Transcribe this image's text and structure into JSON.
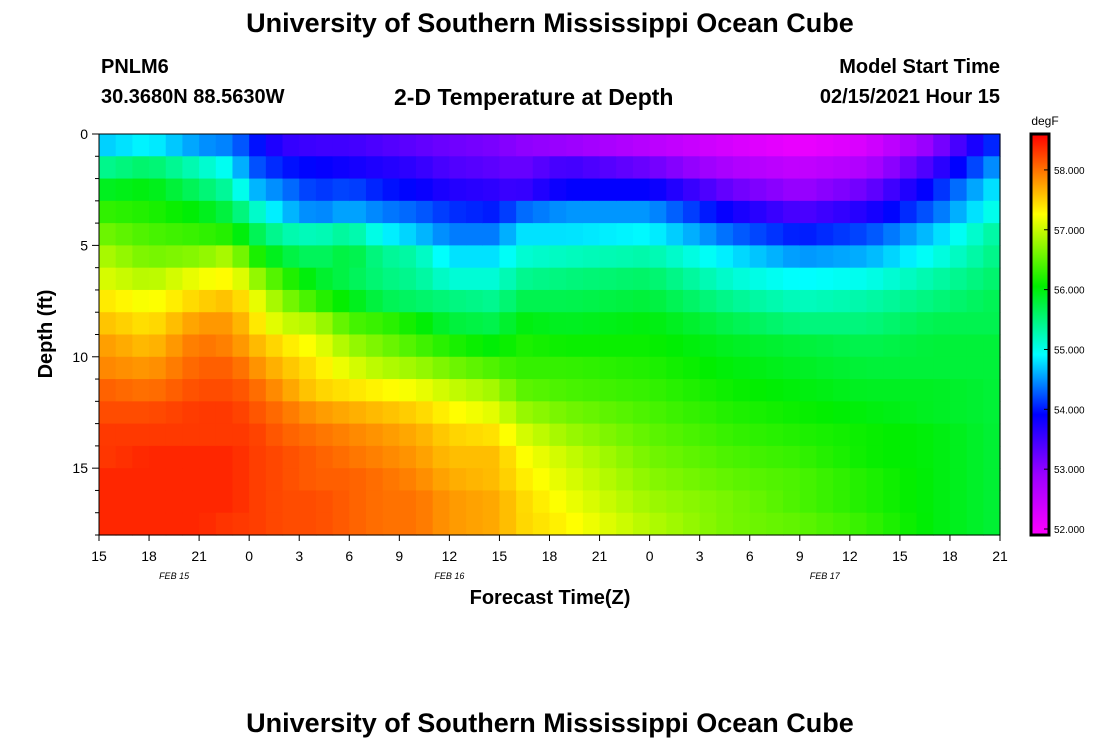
{
  "header": {
    "title": "University of Southern Mississippi Ocean Cube",
    "station_id": "PNLM6",
    "station_coords": "30.3680N 88.5630W",
    "plot_title": "2-D Temperature at Depth",
    "model_start_label": "Model Start Time",
    "model_start_value": "02/15/2021 Hour 15"
  },
  "footer": {
    "title": "University of Southern Mississippi Ocean Cube"
  },
  "chart_data": {
    "type": "heatmap",
    "title": "2-D Temperature at Depth",
    "xlabel": "Forecast Time(Z)",
    "ylabel": "Depth (ft)",
    "x_tick_labels": [
      "15",
      "18",
      "21",
      "0",
      "3",
      "6",
      "9",
      "12",
      "15",
      "18",
      "21",
      "0",
      "3",
      "6",
      "9",
      "12",
      "15",
      "18",
      "21"
    ],
    "date_labels": [
      {
        "label": "FEB 15",
        "tick_index": 1.5
      },
      {
        "label": "FEB 16",
        "tick_index": 7
      },
      {
        "label": "FEB 17",
        "tick_index": 14.5
      }
    ],
    "x_range_hours": [
      0,
      54
    ],
    "y_ticks": [
      0,
      5,
      10,
      15
    ],
    "y_range_ft": [
      0,
      18
    ],
    "colorbar": {
      "unit": "degF",
      "min": 51.9,
      "max": 58.6,
      "ticks": [
        "52.000",
        "53.000",
        "54.000",
        "55.000",
        "56.000",
        "57.000",
        "58.000"
      ]
    },
    "depth_levels_ft": [
      0.5,
      1.5,
      2.5,
      3.5,
      4.5,
      5.5,
      6.5,
      7.5,
      8.5,
      9.5,
      10.5,
      11.5,
      12.5,
      13.5,
      14.5,
      15.5,
      16.5,
      17.5
    ],
    "profiles": [
      {
        "hour": 0,
        "temps": [
          54.7,
          55.4,
          55.9,
          56.3,
          56.6,
          56.9,
          57.1,
          57.4,
          57.6,
          57.8,
          57.9,
          58.1,
          58.2,
          58.3,
          58.3,
          58.4,
          58.4,
          58.4
        ]
      },
      {
        "hour": 3,
        "temps": [
          54.9,
          55.6,
          56.0,
          56.2,
          56.4,
          56.6,
          56.9,
          57.2,
          57.4,
          57.6,
          57.8,
          58.0,
          58.2,
          58.3,
          58.4,
          58.4,
          58.4,
          58.4
        ]
      },
      {
        "hour": 6,
        "temps": [
          54.5,
          55.2,
          55.6,
          56.0,
          56.3,
          56.7,
          57.2,
          57.5,
          57.8,
          58.0,
          58.1,
          58.2,
          58.3,
          58.3,
          58.4,
          58.4,
          58.4,
          58.4
        ]
      },
      {
        "hour": 8,
        "temps": [
          54.4,
          54.9,
          55.3,
          55.7,
          56.2,
          56.9,
          57.3,
          57.6,
          57.8,
          57.9,
          58.1,
          58.2,
          58.3,
          58.3,
          58.4,
          58.4,
          58.4,
          58.3
        ]
      },
      {
        "hour": 9,
        "temps": [
          54.1,
          54.3,
          54.7,
          55.3,
          55.8,
          56.3,
          56.9,
          57.3,
          57.5,
          57.7,
          57.9,
          58.1,
          58.2,
          58.3,
          58.3,
          58.3,
          58.3,
          58.3
        ]
      },
      {
        "hour": 11,
        "temps": [
          53.6,
          54.0,
          54.4,
          54.7,
          55.3,
          55.8,
          56.3,
          56.7,
          57.0,
          57.4,
          57.6,
          57.8,
          58.0,
          58.1,
          58.2,
          58.2,
          58.2,
          58.2
        ]
      },
      {
        "hour": 13,
        "temps": [
          53.5,
          53.9,
          54.1,
          54.4,
          55.2,
          55.6,
          55.9,
          56.3,
          56.9,
          57.2,
          57.4,
          57.5,
          57.8,
          58.0,
          58.1,
          58.1,
          58.2,
          58.2
        ]
      },
      {
        "hour": 15,
        "temps": [
          53.5,
          53.8,
          54.2,
          54.6,
          55.4,
          55.8,
          55.7,
          56.0,
          56.4,
          56.8,
          57.1,
          57.4,
          57.7,
          57.9,
          58.0,
          58.1,
          58.1,
          58.1
        ]
      },
      {
        "hour": 17,
        "temps": [
          53.4,
          53.7,
          54.0,
          54.4,
          54.9,
          55.4,
          55.5,
          55.7,
          56.3,
          56.6,
          56.9,
          57.3,
          57.6,
          57.8,
          57.9,
          58.0,
          58.0,
          58.0
        ]
      },
      {
        "hour": 19,
        "temps": [
          53.3,
          53.6,
          53.9,
          54.3,
          54.7,
          55.3,
          55.4,
          55.6,
          56.1,
          56.4,
          56.8,
          57.2,
          57.5,
          57.7,
          57.8,
          57.9,
          58.0,
          58.0
        ]
      },
      {
        "hour": 21,
        "temps": [
          53.2,
          53.4,
          53.7,
          54.1,
          54.4,
          54.8,
          55.1,
          55.5,
          55.8,
          56.2,
          56.6,
          57.0,
          57.3,
          57.5,
          57.6,
          57.7,
          57.8,
          57.8
        ]
      },
      {
        "hour": 24,
        "temps": [
          53.1,
          53.3,
          53.6,
          54.0,
          54.4,
          54.8,
          55.1,
          55.4,
          55.7,
          56.0,
          56.4,
          56.8,
          57.1,
          57.4,
          57.6,
          57.6,
          57.7,
          57.7
        ]
      },
      {
        "hour": 25,
        "temps": [
          53.0,
          53.2,
          53.5,
          54.3,
          54.8,
          55.1,
          55.4,
          55.7,
          56.0,
          56.2,
          56.3,
          56.5,
          56.8,
          57.1,
          57.3,
          57.4,
          57.5,
          57.5
        ]
      },
      {
        "hour": 28,
        "temps": [
          52.9,
          53.5,
          53.9,
          54.5,
          54.8,
          55.2,
          55.5,
          55.7,
          55.9,
          56.1,
          56.3,
          56.4,
          56.6,
          56.8,
          57.0,
          57.1,
          57.2,
          57.3
        ]
      },
      {
        "hour": 33,
        "temps": [
          52.6,
          53.2,
          53.9,
          54.5,
          54.9,
          55.3,
          55.6,
          55.8,
          56.0,
          56.1,
          56.2,
          56.3,
          56.4,
          56.5,
          56.6,
          56.7,
          56.8,
          56.9
        ]
      },
      {
        "hour": 38,
        "temps": [
          52.3,
          52.7,
          53.2,
          53.8,
          54.3,
          54.8,
          55.1,
          55.4,
          55.7,
          55.9,
          56.0,
          56.1,
          56.2,
          56.3,
          56.4,
          56.5,
          56.6,
          56.6
        ]
      },
      {
        "hour": 42,
        "temps": [
          52.1,
          52.5,
          52.9,
          53.4,
          54.0,
          54.5,
          54.9,
          55.2,
          55.5,
          55.8,
          55.9,
          56.0,
          56.1,
          56.2,
          56.3,
          56.4,
          56.4,
          56.5
        ]
      },
      {
        "hour": 46,
        "temps": [
          52.3,
          52.7,
          53.2,
          53.7,
          54.2,
          54.6,
          55.0,
          55.3,
          55.5,
          55.7,
          55.8,
          55.9,
          56.0,
          56.1,
          56.1,
          56.2,
          56.2,
          56.3
        ]
      },
      {
        "hour": 50,
        "temps": [
          53.0,
          53.5,
          54.0,
          54.3,
          54.7,
          55.0,
          55.3,
          55.5,
          55.7,
          55.8,
          55.8,
          55.9,
          55.9,
          56.0,
          56.0,
          56.0,
          56.0,
          56.0
        ]
      },
      {
        "hour": 54,
        "temps": [
          54.2,
          54.6,
          54.9,
          55.1,
          55.4,
          55.5,
          55.6,
          55.7,
          55.7,
          55.8,
          55.8,
          55.8,
          55.8,
          55.8,
          55.8,
          55.8,
          55.8,
          55.8
        ]
      }
    ]
  }
}
